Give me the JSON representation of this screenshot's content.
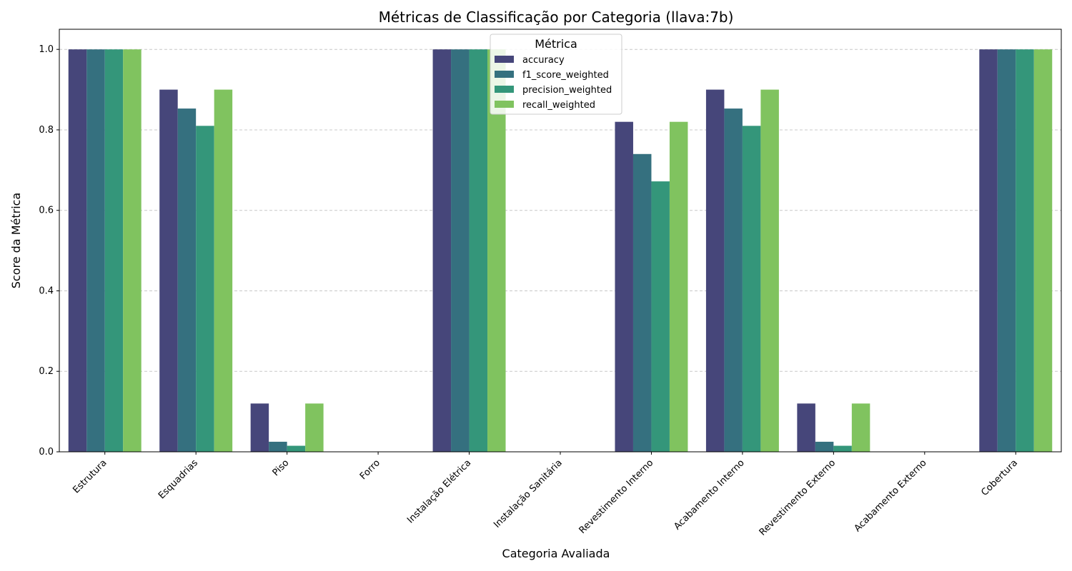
{
  "chart_data": {
    "type": "bar",
    "title": "Métricas de Classificação por Categoria (llava:7b)",
    "xlabel": "Categoria Avaliada",
    "ylabel": "Score da Métrica",
    "ylim": [
      0,
      1.05
    ],
    "yticks": [
      0.0,
      0.2,
      0.4,
      0.6,
      0.8,
      1.0
    ],
    "grid": "y-dashed",
    "legend_title": "Métrica",
    "legend_placement": "top-center",
    "categories": [
      "Estrutura",
      "Esquadrias",
      "Piso",
      "Forro",
      "Instalação Elétrica",
      "Instalação Sanitária",
      "Revestimento Interno",
      "Acabamento Interno",
      "Revestimento Externo",
      "Acabamento Externo",
      "Cobertura"
    ],
    "series": [
      {
        "name": "accuracy",
        "color": "#46467a",
        "values": [
          1.0,
          0.9,
          0.12,
          0.0,
          1.0,
          0.0,
          0.82,
          0.9,
          0.12,
          0.0,
          1.0
        ]
      },
      {
        "name": "f1_score_weighted",
        "color": "#35707f",
        "values": [
          1.0,
          0.853,
          0.025,
          0.0,
          1.0,
          0.0,
          0.74,
          0.853,
          0.025,
          0.0,
          1.0
        ]
      },
      {
        "name": "precision_weighted",
        "color": "#34967a",
        "values": [
          1.0,
          0.81,
          0.015,
          0.0,
          1.0,
          0.0,
          0.672,
          0.81,
          0.015,
          0.0,
          1.0
        ]
      },
      {
        "name": "recall_weighted",
        "color": "#80c35f",
        "values": [
          1.0,
          0.9,
          0.12,
          0.0,
          1.0,
          0.0,
          0.82,
          0.9,
          0.12,
          0.0,
          1.0
        ]
      }
    ]
  }
}
